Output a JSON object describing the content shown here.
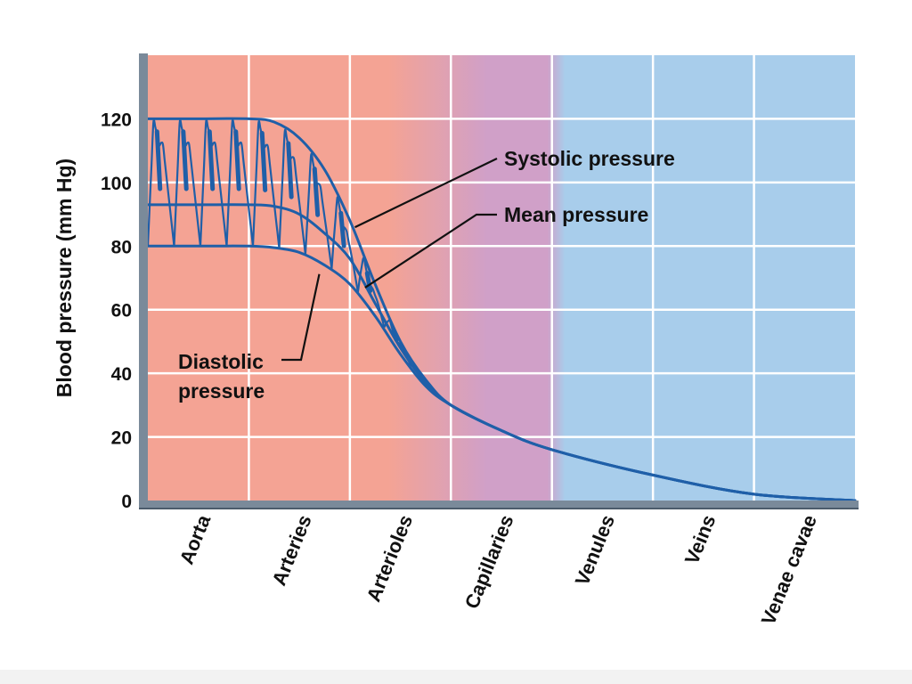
{
  "chart_data": {
    "type": "line",
    "title": "",
    "xlabel": "",
    "ylabel": "Blood pressure (mm Hg)",
    "ylim": [
      0,
      140
    ],
    "yticks": [
      0,
      20,
      40,
      60,
      80,
      100,
      120
    ],
    "grid": true,
    "categories": [
      "Aorta",
      "Arteries",
      "Arterioles",
      "Capillaries",
      "Venules",
      "Veins",
      "Venae cavae"
    ],
    "series": [
      {
        "name": "Systolic pressure",
        "x": [
          0,
          0.5,
          1.0,
          1.25,
          1.5,
          1.75,
          2.0,
          2.25,
          2.5,
          2.75,
          3.0,
          3.5,
          4.0,
          5.0,
          6.0,
          7.0
        ],
        "values": [
          120,
          120,
          120,
          119,
          114,
          104,
          88,
          68,
          50,
          38,
          30,
          22,
          16,
          8,
          2,
          0
        ]
      },
      {
        "name": "Mean pressure",
        "x": [
          0,
          0.5,
          1.0,
          1.25,
          1.5,
          1.75,
          2.0,
          2.25,
          2.5,
          2.75,
          3.0,
          3.5,
          4.0,
          5.0,
          6.0,
          7.0
        ],
        "values": [
          93,
          93,
          93,
          92.5,
          90,
          84,
          76,
          62,
          48,
          37,
          30,
          22,
          16,
          8,
          2,
          0
        ]
      },
      {
        "name": "Diastolic pressure",
        "x": [
          0,
          0.5,
          1.0,
          1.25,
          1.5,
          1.75,
          2.0,
          2.25,
          2.5,
          2.75,
          3.0,
          3.5,
          4.0,
          5.0,
          6.0,
          7.0
        ],
        "values": [
          80,
          80,
          80,
          79.5,
          78,
          74,
          68,
          58,
          46,
          36,
          30,
          22,
          16,
          8,
          2,
          0
        ]
      }
    ],
    "annotations": [
      {
        "text": "Systolic pressure",
        "target_series": "Systolic pressure"
      },
      {
        "text": "Mean pressure",
        "target_series": "Mean pressure"
      },
      {
        "text_lines": [
          "Diastolic",
          "pressure"
        ],
        "target_series": "Diastolic pressure"
      }
    ],
    "background_regions": [
      {
        "categories": [
          "Aorta",
          "Arteries",
          "Arterioles"
        ],
        "color": "#f4a394"
      },
      {
        "categories": [
          "Capillaries"
        ],
        "color": "#d0a0c8"
      },
      {
        "categories": [
          "Venules",
          "Veins",
          "Venae cavae"
        ],
        "color": "#a8cdeb"
      }
    ],
    "colors": {
      "line": "#1f5fa8",
      "arterial_bg": "#f4a394",
      "capillary_bg": "#d0a0c8",
      "venous_bg": "#a8cdeb",
      "grid": "#ffffff",
      "axis": "#7a8a9a"
    }
  }
}
